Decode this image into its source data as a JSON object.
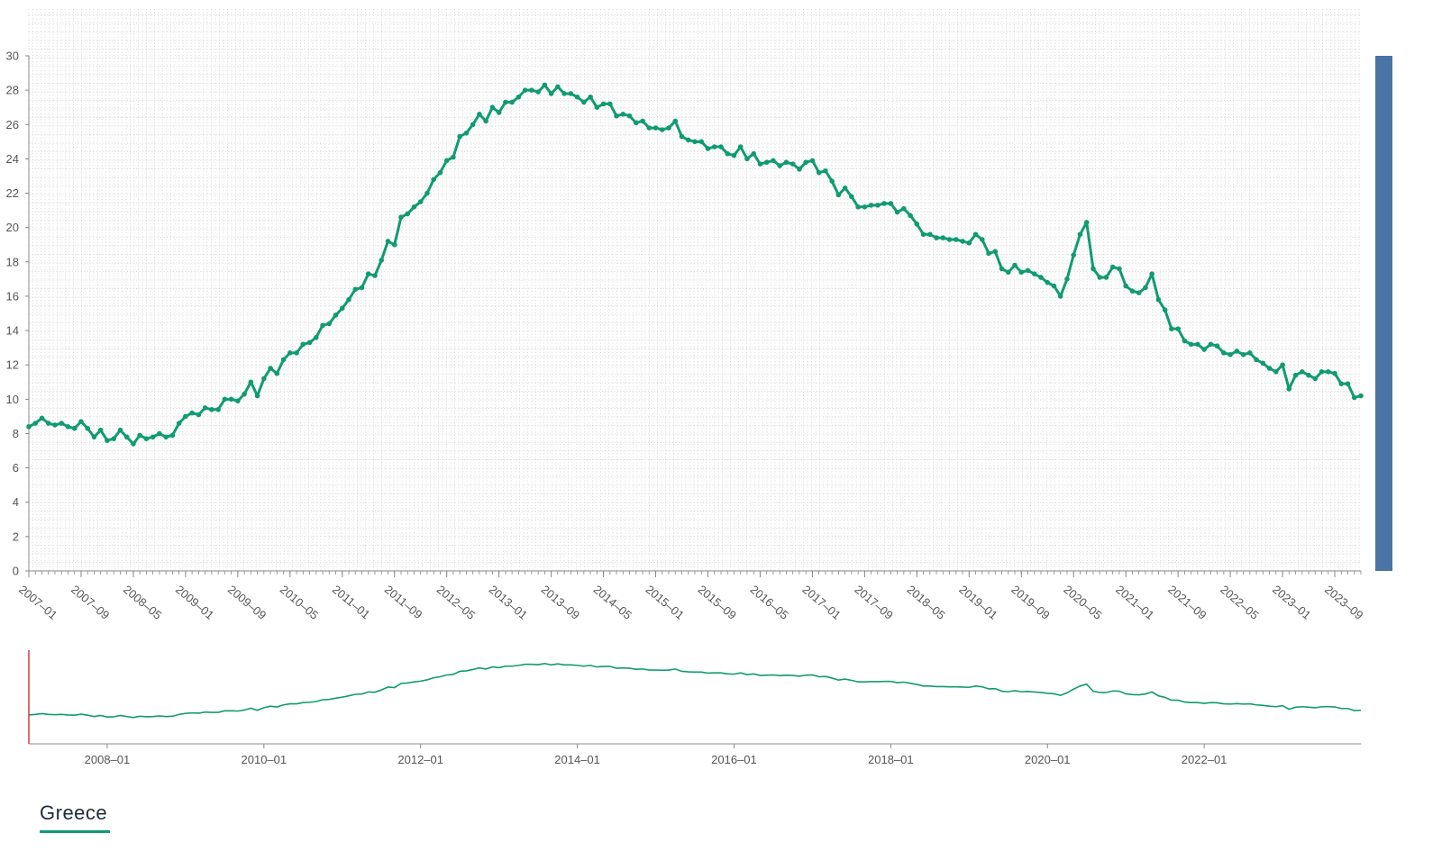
{
  "chart_data": {
    "type": "line",
    "series": [
      {
        "name": "Greece",
        "start": "2007-01",
        "values": [
          8.4,
          8.6,
          8.9,
          8.6,
          8.5,
          8.6,
          8.4,
          8.3,
          8.7,
          8.3,
          7.8,
          8.2,
          7.6,
          7.7,
          8.2,
          7.8,
          7.4,
          7.9,
          7.7,
          7.8,
          8.0,
          7.8,
          7.9,
          8.6,
          9.0,
          9.2,
          9.1,
          9.5,
          9.4,
          9.4,
          10.0,
          10.0,
          9.9,
          10.3,
          11.0,
          10.2,
          11.2,
          11.8,
          11.5,
          12.3,
          12.7,
          12.7,
          13.2,
          13.3,
          13.6,
          14.3,
          14.4,
          14.9,
          15.3,
          15.8,
          16.4,
          16.5,
          17.3,
          17.2,
          18.1,
          19.2,
          19.0,
          20.6,
          20.8,
          21.2,
          21.5,
          22.0,
          22.8,
          23.2,
          23.9,
          24.1,
          25.3,
          25.5,
          26.0,
          26.6,
          26.2,
          27.0,
          26.7,
          27.3,
          27.3,
          27.6,
          28.0,
          28.0,
          27.9,
          28.3,
          27.8,
          28.2,
          27.8,
          27.8,
          27.6,
          27.3,
          27.6,
          27.0,
          27.2,
          27.2,
          26.5,
          26.6,
          26.5,
          26.1,
          26.2,
          25.8,
          25.8,
          25.7,
          25.8,
          26.2,
          25.3,
          25.1,
          25.0,
          25.0,
          24.6,
          24.7,
          24.7,
          24.3,
          24.2,
          24.7,
          24.0,
          24.3,
          23.7,
          23.8,
          23.9,
          23.6,
          23.8,
          23.7,
          23.4,
          23.8,
          23.9,
          23.2,
          23.3,
          22.7,
          21.9,
          22.3,
          21.8,
          21.2,
          21.2,
          21.3,
          21.3,
          21.4,
          21.4,
          20.9,
          21.1,
          20.7,
          20.2,
          19.6,
          19.6,
          19.4,
          19.4,
          19.3,
          19.3,
          19.2,
          19.1,
          19.6,
          19.3,
          18.5,
          18.6,
          17.6,
          17.4,
          17.8,
          17.4,
          17.5,
          17.3,
          17.1,
          16.8,
          16.6,
          16.0,
          17.0,
          18.4,
          19.6,
          20.3,
          17.6,
          17.1,
          17.1,
          17.7,
          17.6,
          16.6,
          16.3,
          16.2,
          16.5,
          17.3,
          15.8,
          15.2,
          14.1,
          14.1,
          13.4,
          13.2,
          13.2,
          12.9,
          13.2,
          13.1,
          12.7,
          12.6,
          12.8,
          12.6,
          12.7,
          12.3,
          12.1,
          11.8,
          11.6,
          12.0,
          10.6,
          11.4,
          11.6,
          11.4,
          11.2,
          11.6,
          11.6,
          11.5,
          10.9,
          10.9,
          10.1,
          10.2
        ],
        "color": "#119b72"
      }
    ],
    "ylim": [
      0,
      30
    ],
    "yticks": [
      "0",
      "2",
      "4",
      "6",
      "8",
      "10",
      "12",
      "14",
      "16",
      "18",
      "20",
      "22",
      "24",
      "26",
      "28",
      "30"
    ],
    "xticks": [
      "2007–01",
      "2007–09",
      "2008–05",
      "2009–01",
      "2009–09",
      "2010–05",
      "2011–01",
      "2011–09",
      "2012–05",
      "2013–01",
      "2013–09",
      "2014–05",
      "2015–01",
      "2015–09",
      "2016–05",
      "2017–01",
      "2017–09",
      "2018–05",
      "2019–01",
      "2019–09",
      "2020–05",
      "2021–01",
      "2021–09",
      "2022–05",
      "2023–01",
      "2023–09"
    ],
    "overview_xticks": [
      "2008–01",
      "2010–01",
      "2012–01",
      "2014–01",
      "2016–01",
      "2018–01",
      "2020–01",
      "2022–01"
    ],
    "grid": true,
    "legend": {
      "position": "bottom-left"
    },
    "colors": {
      "scrollbar": "#4a74a5",
      "overview_marker": "#d33a3a",
      "grid": "#cfcfcf",
      "axis": "#888888"
    }
  }
}
